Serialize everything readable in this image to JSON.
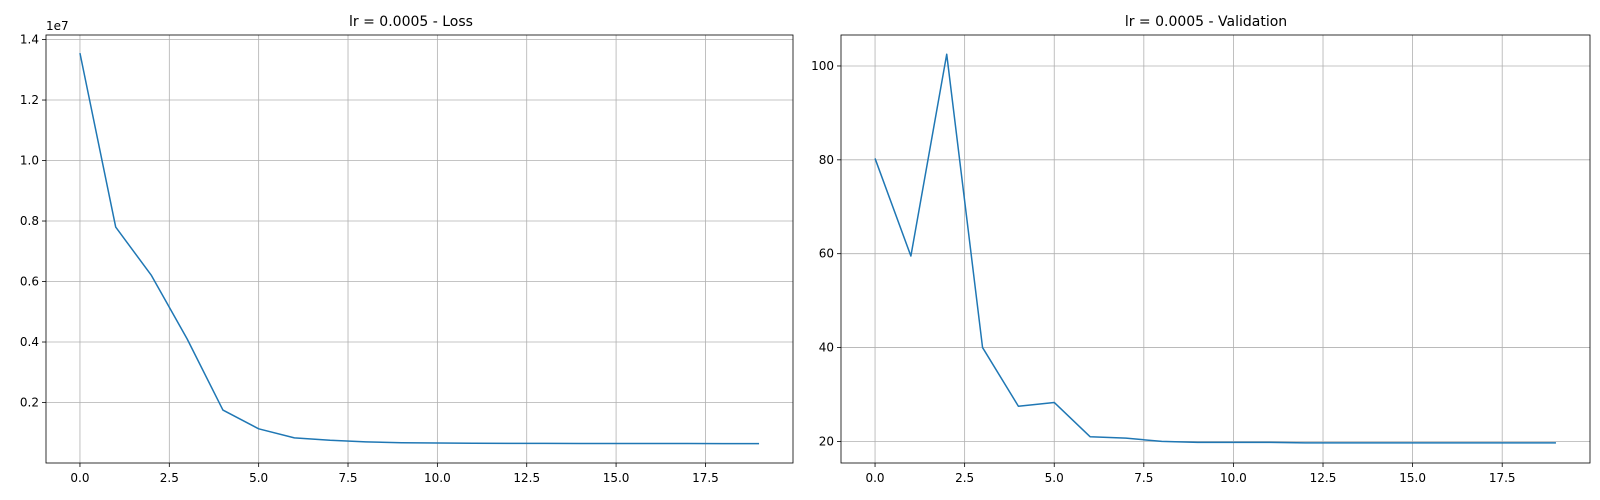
{
  "chart_data": [
    {
      "type": "line",
      "title": "lr = 0.0005 - Loss",
      "xlabel": "",
      "ylabel": "",
      "y_offset_label": "1e7",
      "xlim": [
        -0.95,
        19.95
      ],
      "ylim": [
        0.0,
        1.415
      ],
      "xticks": [
        0.0,
        2.5,
        5.0,
        7.5,
        10.0,
        12.5,
        15.0,
        17.5
      ],
      "xtick_labels": [
        "0.0",
        "2.5",
        "5.0",
        "7.5",
        "10.0",
        "12.5",
        "15.0",
        "17.5"
      ],
      "yticks": [
        0.2,
        0.4,
        0.6,
        0.8,
        1.0,
        1.2,
        1.4
      ],
      "ytick_labels": [
        "0.2",
        "0.4",
        "0.6",
        "0.8",
        "1.0",
        "1.2",
        "1.4"
      ],
      "grid": true,
      "color": "#1f77b4",
      "x": [
        0,
        1,
        2,
        3,
        4,
        5,
        6,
        7,
        8,
        9,
        10,
        11,
        12,
        13,
        14,
        15,
        16,
        17,
        18,
        19
      ],
      "y": [
        1.355,
        0.78,
        0.62,
        0.41,
        0.175,
        0.113,
        0.083,
        0.075,
        0.07,
        0.067,
        0.066,
        0.0655,
        0.065,
        0.0648,
        0.0646,
        0.0645,
        0.0644,
        0.0643,
        0.0642,
        0.0641
      ]
    },
    {
      "type": "line",
      "title": "lr = 0.0005 - Validation",
      "xlabel": "",
      "ylabel": "",
      "y_offset_label": "",
      "xlim": [
        -0.95,
        19.95
      ],
      "ylim": [
        15.4,
        106.6
      ],
      "xticks": [
        0.0,
        2.5,
        5.0,
        7.5,
        10.0,
        12.5,
        15.0,
        17.5
      ],
      "xtick_labels": [
        "0.0",
        "2.5",
        "5.0",
        "7.5",
        "10.0",
        "12.5",
        "15.0",
        "17.5"
      ],
      "yticks": [
        20,
        40,
        60,
        80,
        100
      ],
      "ytick_labels": [
        "20",
        "40",
        "60",
        "80",
        "100"
      ],
      "grid": true,
      "color": "#1f77b4",
      "x": [
        0,
        1,
        2,
        3,
        4,
        5,
        6,
        7,
        8,
        9,
        10,
        11,
        12,
        13,
        14,
        15,
        16,
        17,
        18,
        19
      ],
      "y": [
        80.3,
        59.5,
        102.5,
        40.0,
        27.5,
        28.3,
        21.0,
        20.7,
        20.0,
        19.8,
        19.8,
        19.8,
        19.7,
        19.7,
        19.7,
        19.7,
        19.7,
        19.7,
        19.7,
        19.7
      ]
    }
  ]
}
